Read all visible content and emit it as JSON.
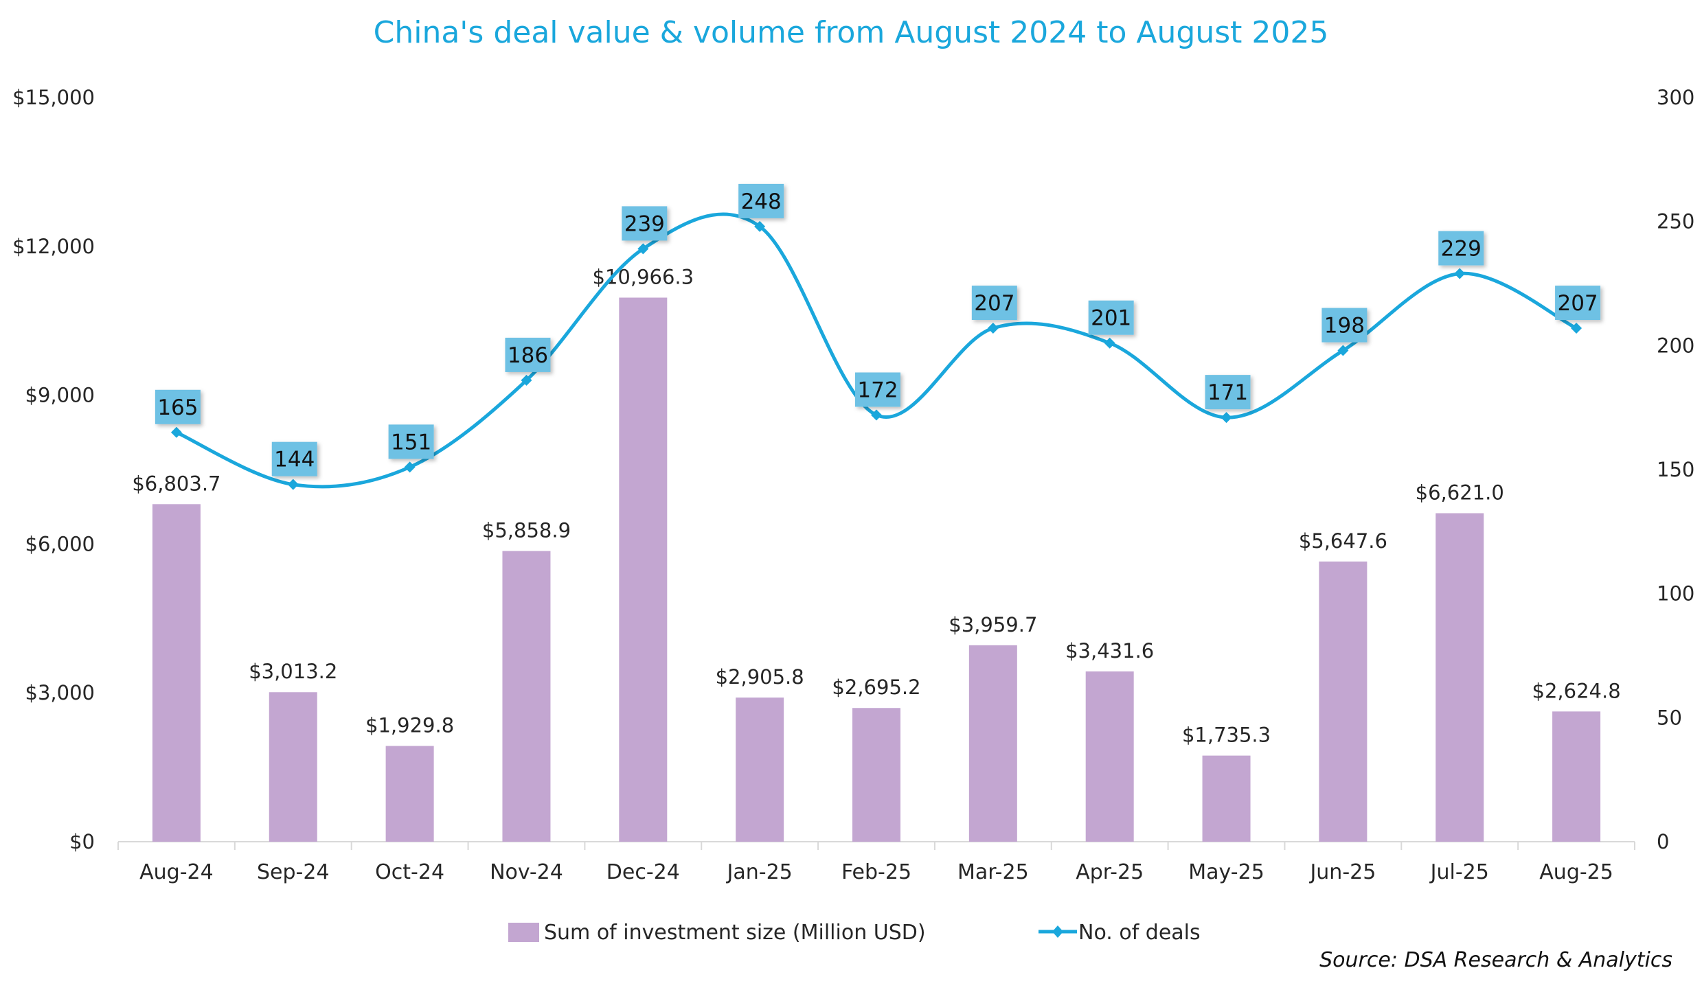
{
  "chart_data": {
    "type": "bar",
    "combo": "bar + line (dual axis)",
    "title": "China's deal value & volume from August 2024 to August 2025",
    "categories": [
      "Aug-24",
      "Sep-24",
      "Oct-24",
      "Nov-24",
      "Dec-24",
      "Jan-25",
      "Feb-25",
      "Mar-25",
      "Apr-25",
      "May-25",
      "Jun-25",
      "Jul-25",
      "Aug-25"
    ],
    "series": [
      {
        "name": "Sum of investment size (Million USD)",
        "type": "bar",
        "axis": "left",
        "color": "#c3a6d1",
        "values": [
          6803.7,
          3013.2,
          1929.8,
          5858.9,
          10966.3,
          2905.8,
          2695.2,
          3959.7,
          3431.6,
          1735.3,
          5647.6,
          6621.0,
          2624.8
        ],
        "labels": [
          "$6,803.7",
          "$3,013.2",
          "$1,929.8",
          "$5,858.9",
          "$10,966.3",
          "$2,905.8",
          "$2,695.2",
          "$3,959.7",
          "$3,431.6",
          "$1,735.3",
          "$5,647.6",
          "$6,621.0",
          "$2,624.8"
        ]
      },
      {
        "name": "No. of deals",
        "type": "line",
        "smooth": true,
        "axis": "right",
        "color": "#1aa7dc",
        "label_box_color": "#6ec1e4",
        "values": [
          165,
          144,
          151,
          186,
          239,
          248,
          172,
          207,
          201,
          171,
          198,
          229,
          207
        ]
      }
    ],
    "left_axis": {
      "ylim": [
        0,
        15000
      ],
      "ticks": [
        0,
        3000,
        6000,
        9000,
        12000,
        15000
      ],
      "tick_labels": [
        "$0",
        "$3,000",
        "$6,000",
        "$9,000",
        "$12,000",
        "$15,000"
      ]
    },
    "right_axis": {
      "ylim": [
        0,
        300
      ],
      "ticks": [
        0,
        50,
        100,
        150,
        200,
        250,
        300
      ],
      "tick_labels": [
        "0",
        "50",
        "100",
        "150",
        "200",
        "250",
        "300"
      ]
    },
    "xlabel": "",
    "ylabel": "",
    "grid": false,
    "legend": {
      "position": "bottom",
      "entries": [
        "Sum of investment size (Million USD)",
        "No. of deals"
      ]
    },
    "source": "Source: DSA Research & Analytics"
  }
}
